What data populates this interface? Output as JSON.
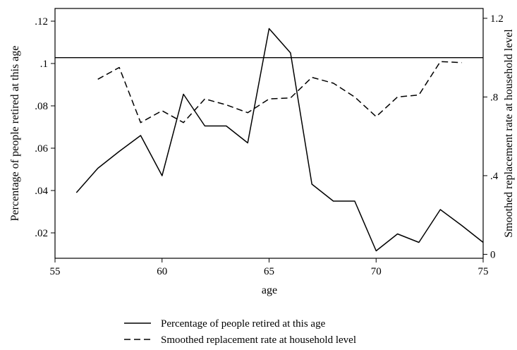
{
  "chart_data": {
    "type": "line",
    "title": "",
    "xlabel": "age",
    "ylabel_left": "Percentage of people retired at this age",
    "ylabel_right": "Smoothed replacement rate at household level",
    "xlim": [
      55,
      75
    ],
    "ylim_left": [
      0.008,
      0.126
    ],
    "ylim_right": [
      -0.02,
      1.25
    ],
    "x_ticks": [
      55,
      60,
      65,
      70,
      75
    ],
    "y_left_ticks": [
      {
        "value": 0.02,
        "label": ".02"
      },
      {
        "value": 0.04,
        "label": ".04"
      },
      {
        "value": 0.06,
        "label": ".06"
      },
      {
        "value": 0.08,
        "label": ".08"
      },
      {
        "value": 0.1,
        "label": ".1"
      },
      {
        "value": 0.12,
        "label": ".12"
      }
    ],
    "y_right_ticks": [
      {
        "value": 0,
        "label": "0"
      },
      {
        "value": 0.4,
        "label": ".4"
      },
      {
        "value": 0.8,
        "label": ".8"
      },
      {
        "value": 1.2,
        "label": "1.2"
      }
    ],
    "reference_line": {
      "axis": "right",
      "value": 1.0
    },
    "grid": false,
    "legend_position": "bottom",
    "series": [
      {
        "name": "Percentage of people retired at this age",
        "axis": "left",
        "style": "solid",
        "x": [
          56,
          57,
          58,
          59,
          60,
          61,
          62,
          63,
          64,
          65,
          66,
          67,
          68,
          69,
          70,
          71,
          72,
          73,
          74,
          75
        ],
        "y": [
          0.039,
          0.0505,
          0.0585,
          0.066,
          0.047,
          0.0855,
          0.0705,
          0.0705,
          0.0625,
          0.1165,
          0.105,
          0.043,
          0.035,
          0.035,
          0.0115,
          0.0195,
          0.0155,
          0.031,
          0.0235,
          0.0155
        ]
      },
      {
        "name": "Smoothed replacement rate at household level",
        "axis": "right",
        "style": "dashed",
        "x": [
          57,
          58,
          59,
          60,
          61,
          62,
          63,
          64,
          65,
          66,
          67,
          68,
          69,
          70,
          71,
          72,
          73,
          74
        ],
        "y": [
          0.89,
          0.95,
          0.67,
          0.73,
          0.67,
          0.79,
          0.76,
          0.72,
          0.79,
          0.795,
          0.9,
          0.87,
          0.8,
          0.7,
          0.8,
          0.81,
          0.98,
          0.975
        ]
      }
    ]
  }
}
